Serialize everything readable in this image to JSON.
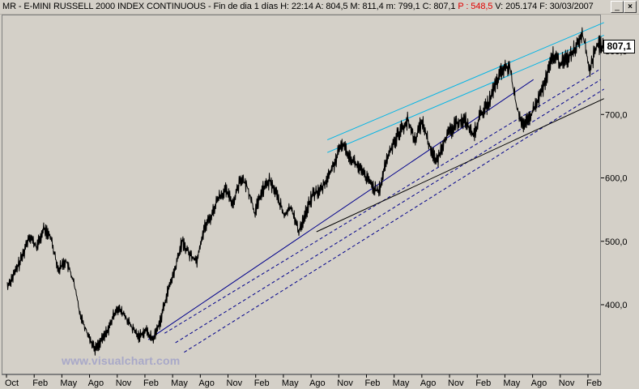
{
  "window": {
    "title_prefix": "MR - E-MINI RUSSELL 2000 INDEX CONTINUOUS - Fin de dia 1 días",
    "h_label": "H:",
    "h_value": "22:14",
    "a_label": "A:",
    "a_value": "804,5",
    "max_label": "M:",
    "max_value": "811,4",
    "min_label": "m:",
    "min_value": "799,1",
    "c_label": "C:",
    "c_value": "807,1",
    "p_label": "P :",
    "p_value": "548,5",
    "v_label": "V:",
    "v_value": "205.174",
    "f_label": "F:",
    "f_value": "30/03/2007",
    "minimize_label": "_",
    "close_label": "×"
  },
  "watermark": "www.visualchart.com",
  "last_price_label": "807,1",
  "colors": {
    "price": "#000000",
    "trend_blue": "#00008b",
    "trend_cyan": "#00b4e6",
    "trend_black": "#000000",
    "background": "#d4d0c8"
  },
  "chart_data": {
    "type": "line",
    "title": "MR - E-MINI RUSSELL 2000 INDEX CONTINUOUS",
    "xlabel": "",
    "ylabel": "",
    "ylim": [
      305,
      840
    ],
    "yticks": [
      "400,0",
      "500,0",
      "600,0",
      "700,0",
      "800,0"
    ],
    "ytick_values": [
      400,
      500,
      600,
      700,
      800
    ],
    "xticks": [
      "Oct",
      "Feb",
      "May",
      "Ago",
      "Nov",
      "Feb",
      "May",
      "Ago",
      "Nov",
      "Feb",
      "May",
      "Ago",
      "Nov",
      "Feb",
      "May",
      "Ago",
      "Nov",
      "Feb",
      "May",
      "Ago",
      "Nov",
      "Feb"
    ],
    "x_range": [
      "2001-10",
      "2007-03"
    ],
    "series": [
      {
        "values": [
          430,
          450,
          475,
          510,
          490,
          520,
          505,
          455,
          470,
          440,
          385,
          355,
          330,
          345,
          365,
          395,
          385,
          365,
          350,
          360,
          345,
          375,
          420,
          455,
          500,
          480,
          470,
          520,
          540,
          570,
          580,
          560,
          600,
          585,
          545,
          580,
          595,
          575,
          540,
          555,
          515,
          545,
          575,
          580,
          600,
          625,
          655,
          635,
          620,
          605,
          590,
          575,
          625,
          655,
          675,
          690,
          660,
          690,
          650,
          625,
          660,
          675,
          690,
          690,
          665,
          700,
          715,
          745,
          770,
          775,
          710,
          680,
          700,
          725,
          755,
          795,
          780,
          790,
          805,
          830,
          770,
          810,
          807
        ]
      }
    ],
    "trend_lines": [
      {
        "color": "blue",
        "style": "solid",
        "points": [
          [
            2003.05,
            345
          ],
          [
            2006.6,
            755
          ]
        ]
      },
      {
        "color": "blue",
        "style": "dashed",
        "points": [
          [
            2003.2,
            355
          ],
          [
            2007.2,
            770
          ]
        ]
      },
      {
        "color": "blue",
        "style": "dashed",
        "points": [
          [
            2003.3,
            340
          ],
          [
            2007.22,
            755
          ]
        ]
      },
      {
        "color": "blue",
        "style": "dashed",
        "points": [
          [
            2003.38,
            325
          ],
          [
            2007.25,
            740
          ]
        ]
      },
      {
        "color": "black",
        "style": "solid",
        "points": [
          [
            2004.6,
            515
          ],
          [
            2007.25,
            725
          ]
        ]
      },
      {
        "color": "cyan",
        "style": "solid",
        "points": [
          [
            2004.7,
            660
          ],
          [
            2007.25,
            845
          ]
        ]
      },
      {
        "color": "cyan",
        "style": "solid",
        "points": [
          [
            2004.7,
            640
          ],
          [
            2007.25,
            825
          ]
        ]
      }
    ],
    "grid": false,
    "legend": "none"
  }
}
